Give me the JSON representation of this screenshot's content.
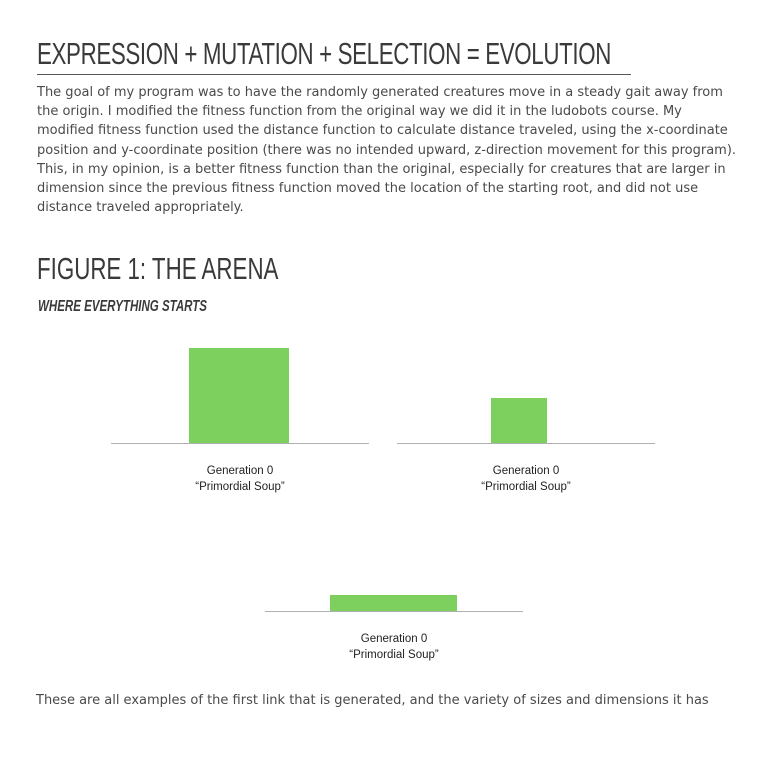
{
  "section": {
    "title": "EXPRESSION + MUTATION + SELECTION = EVOLUTION",
    "body": "The goal of my program was to have the randomly generated creatures move in a steady gait away from the origin. I modified the fitness function from the original way we did it in the ludobots course. My modified fitness function used the distance function to calculate distance traveled, using the x-coordinate position and y-coordinate position (there was no intended upward, z-direction movement for this program). This, in my opinion, is a better fitness function than the original, especially for creatures that are larger in dimension since the previous fitness function moved the location of the starting root, and did not use distance traveled appropriately."
  },
  "figure": {
    "title": "FIGURE 1: THE ARENA",
    "subtitle": "WHERE EVERYTHING STARTS",
    "panels": [
      {
        "caption_line1": "Generation 0",
        "caption_line2": "“Primordial Soup”"
      },
      {
        "caption_line1": "Generation 0",
        "caption_line2": "“Primordial Soup”"
      },
      {
        "caption_line1": "Generation 0",
        "caption_line2": "“Primordial Soup”"
      }
    ],
    "block_color": "#7dd05e"
  },
  "footer": {
    "text": "These are all examples of the first link that is generated, and the variety of sizes and dimensions it has"
  }
}
